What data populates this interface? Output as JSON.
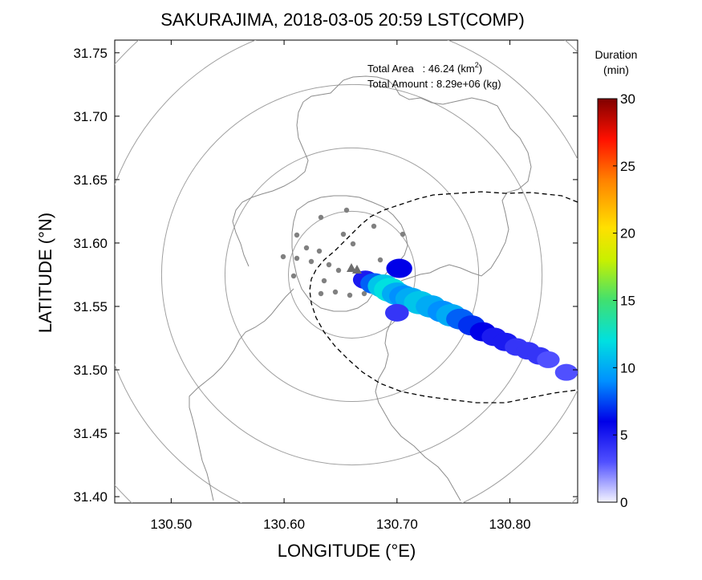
{
  "chart_data": {
    "type": "heatmap",
    "title": "SAKURAJIMA, 2018-03-05 20:59 LST(COMP)",
    "xlabel": "LONGITUDE (°E)",
    "ylabel": "LATITUDE (°N)",
    "xlim": [
      130.45,
      130.86
    ],
    "ylim": [
      31.395,
      31.76
    ],
    "x_ticks": [
      130.5,
      130.6,
      130.7,
      130.8
    ],
    "x_tick_labels": [
      "130.50",
      "130.60",
      "130.70",
      "130.80"
    ],
    "y_ticks": [
      31.4,
      31.45,
      31.5,
      31.55,
      31.6,
      31.65,
      31.7,
      31.75
    ],
    "y_tick_labels": [
      "31.40",
      "31.45",
      "31.50",
      "31.55",
      "31.60",
      "31.65",
      "31.70",
      "31.75"
    ],
    "info_lines": [
      "Total Area   : 46.24 (km",
      "2",
      ")",
      "Total Amount : 8.29e+06 (kg)"
    ],
    "colorbar": {
      "title_line1": "Duration",
      "title_line2": "(min)",
      "range": [
        0,
        30
      ],
      "ticks": [
        0,
        5,
        10,
        15,
        20,
        25,
        30
      ],
      "tick_labels": [
        "0",
        "5",
        "10",
        "15",
        "20",
        "25",
        "30"
      ]
    },
    "vent": {
      "lon": 130.66,
      "lat": 31.58
    },
    "range_rings_center": {
      "lon": 130.66,
      "lat": 31.575
    },
    "range_rings_radius_deg_lat": [
      0.05,
      0.1,
      0.15,
      0.2,
      0.25
    ],
    "plume": [
      {
        "lon": 130.672,
        "lat": 31.571,
        "duration": 5
      },
      {
        "lon": 130.68,
        "lat": 31.568,
        "duration": 8
      },
      {
        "lon": 130.688,
        "lat": 31.566,
        "duration": 11
      },
      {
        "lon": 130.694,
        "lat": 31.563,
        "duration": 12
      },
      {
        "lon": 130.7,
        "lat": 31.56,
        "duration": 10
      },
      {
        "lon": 130.706,
        "lat": 31.558,
        "duration": 9
      },
      {
        "lon": 130.712,
        "lat": 31.556,
        "duration": 10
      },
      {
        "lon": 130.72,
        "lat": 31.553,
        "duration": 11
      },
      {
        "lon": 130.73,
        "lat": 31.55,
        "duration": 10
      },
      {
        "lon": 130.74,
        "lat": 31.546,
        "duration": 9
      },
      {
        "lon": 130.748,
        "lat": 31.543,
        "duration": 10
      },
      {
        "lon": 130.756,
        "lat": 31.54,
        "duration": 8
      },
      {
        "lon": 130.766,
        "lat": 31.535,
        "duration": 7
      },
      {
        "lon": 130.776,
        "lat": 31.53,
        "duration": 6
      },
      {
        "lon": 130.786,
        "lat": 31.526,
        "duration": 5
      },
      {
        "lon": 130.796,
        "lat": 31.522,
        "duration": 5
      },
      {
        "lon": 130.806,
        "lat": 31.518,
        "duration": 4
      },
      {
        "lon": 130.816,
        "lat": 31.515,
        "duration": 4
      },
      {
        "lon": 130.826,
        "lat": 31.511,
        "duration": 4
      },
      {
        "lon": 130.834,
        "lat": 31.508,
        "duration": 3
      },
      {
        "lon": 130.702,
        "lat": 31.58,
        "duration": 6
      },
      {
        "lon": 130.7,
        "lat": 31.545,
        "duration": 4
      },
      {
        "lon": 130.85,
        "lat": 31.498,
        "duration": 3
      }
    ]
  }
}
